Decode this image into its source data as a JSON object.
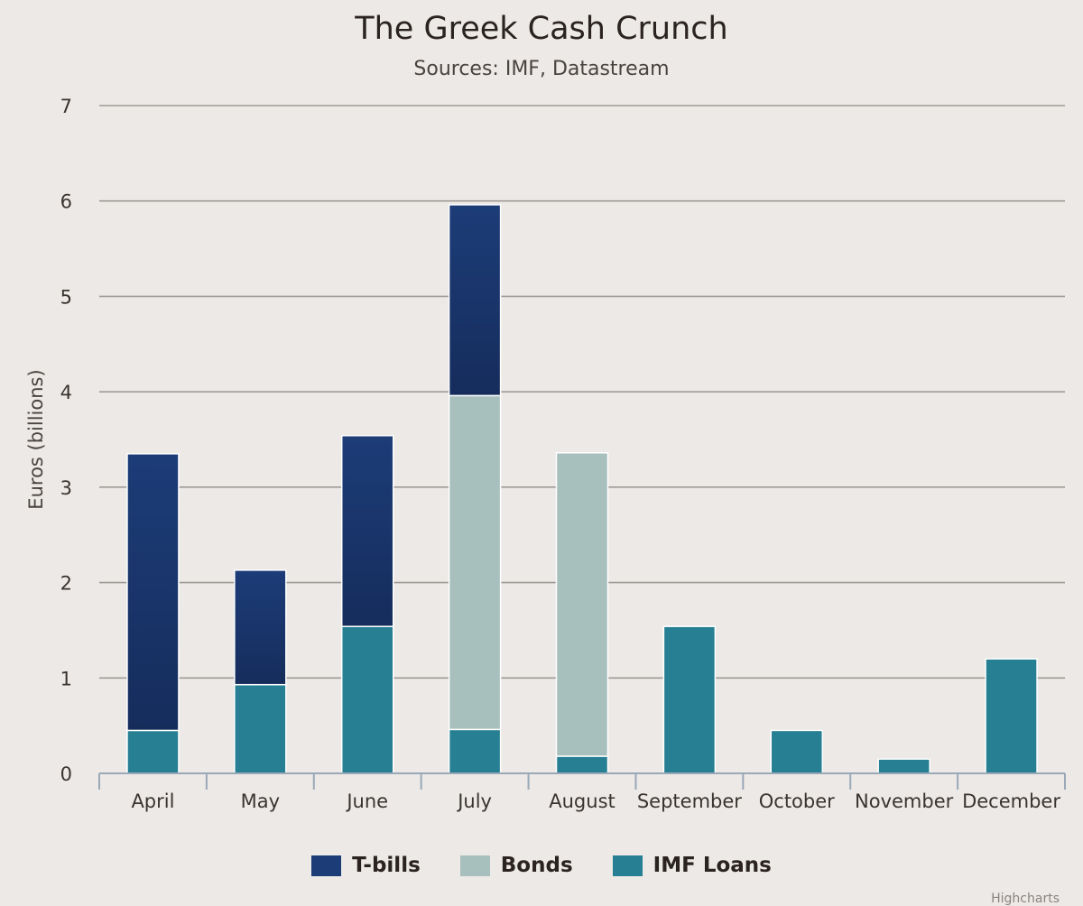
{
  "chart_data": {
    "type": "bar",
    "stacked": true,
    "title": "The Greek Cash Crunch",
    "subtitle": "Sources: IMF, Datastream",
    "ylabel": "Euros (billions)",
    "xlabel": "",
    "ylim": [
      0,
      7
    ],
    "yticks": [
      "0",
      "1",
      "2",
      "3",
      "4",
      "5",
      "6",
      "7"
    ],
    "grid": true,
    "legend_position": "bottom-center",
    "categories": [
      "April",
      "May",
      "June",
      "July",
      "August",
      "September",
      "October",
      "November",
      "December"
    ],
    "series": [
      {
        "name": "T-bills",
        "color": "#1c3c78",
        "values": [
          2.9,
          1.2,
          2.0,
          2.0,
          0,
          0,
          0,
          0,
          0
        ]
      },
      {
        "name": "Bonds",
        "color": "#a8c0bd",
        "values": [
          0,
          0,
          0,
          3.5,
          3.18,
          0,
          0,
          0,
          0
        ]
      },
      {
        "name": "IMF Loans",
        "color": "#267f93",
        "values": [
          0.45,
          0.93,
          1.54,
          0.46,
          0.18,
          1.54,
          0.45,
          0.15,
          1.2
        ]
      }
    ],
    "credit": "Highcharts"
  }
}
